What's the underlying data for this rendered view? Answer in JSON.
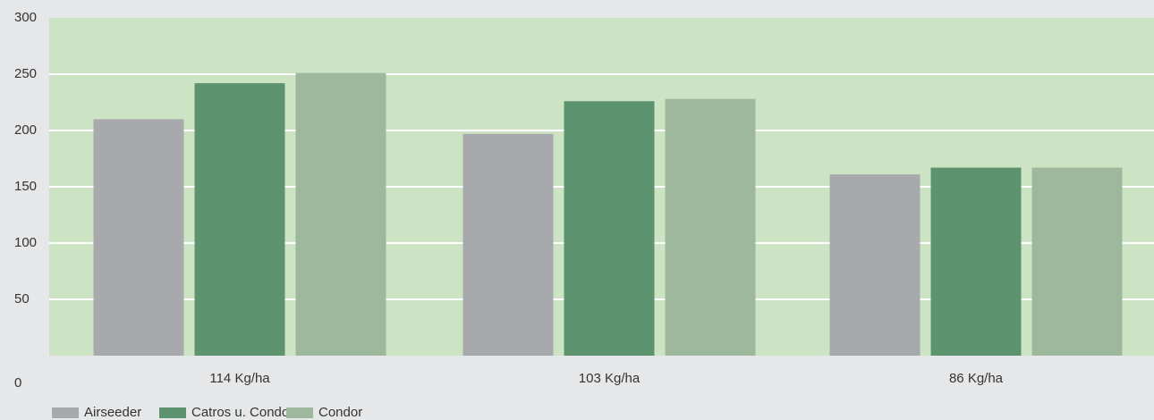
{
  "chart_data": {
    "type": "bar",
    "title": "",
    "xlabel": "",
    "ylabel": "",
    "categories": [
      "114 Kg/ha",
      "103 Kg/ha",
      "86 Kg/ha"
    ],
    "series": [
      {
        "name": "Airseeder",
        "values": [
          210,
          197,
          161
        ],
        "color": "#a7a9ac"
      },
      {
        "name": "Catros u. Condor",
        "values": [
          242,
          226,
          167
        ],
        "color": "#5d946f"
      },
      {
        "name": "Condor",
        "values": [
          251,
          228,
          167
        ],
        "color": "#9eb89e"
      }
    ],
    "ylim": [
      0,
      300
    ],
    "yticks": [
      0,
      50,
      100,
      150,
      200,
      250,
      300
    ],
    "grid": true,
    "legend_position": "bottom-left",
    "plot_background": "#cce4c3",
    "background": "#e6e7e8"
  }
}
